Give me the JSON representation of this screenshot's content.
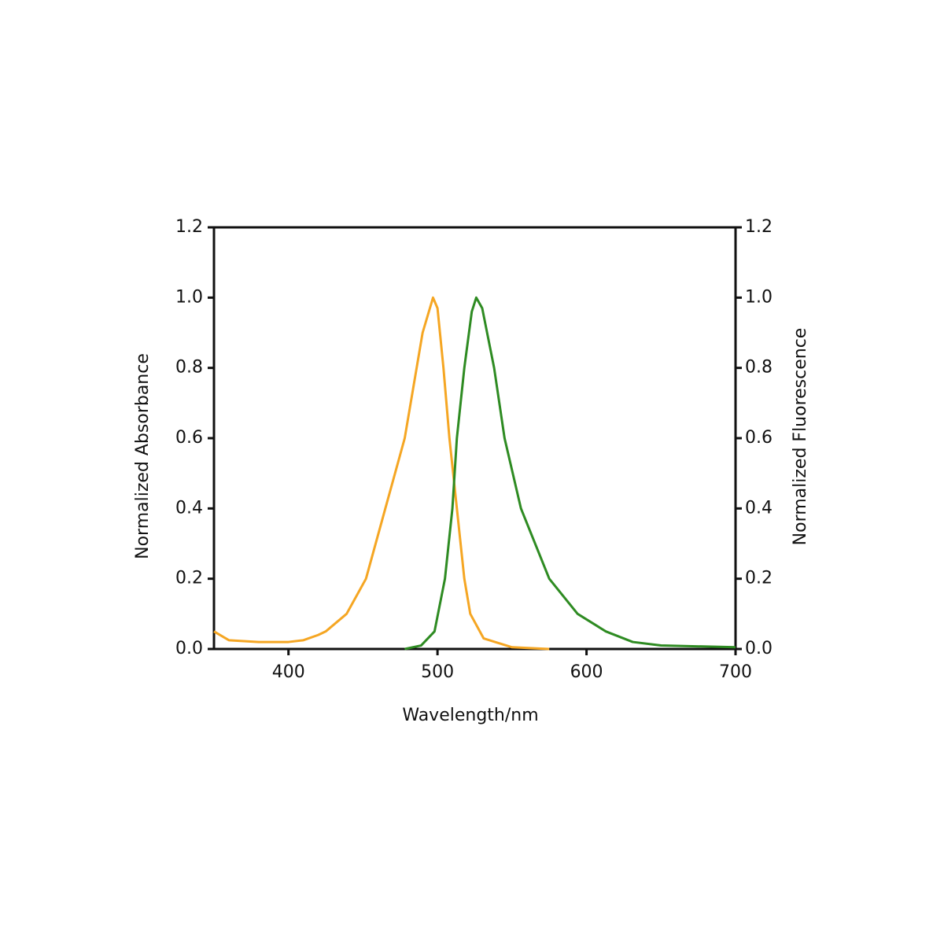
{
  "chart_data": {
    "type": "line",
    "xlabel": "Wavelength/nm",
    "ylabel": "Normalized Absorbance",
    "y2label": "Normalized Fluorescence",
    "xlim": [
      350,
      700
    ],
    "xticks": [
      400,
      500,
      600,
      700
    ],
    "ylim": [
      0,
      1.2
    ],
    "yticks": [
      {
        "value": 0,
        "label": "0.0"
      },
      0.2,
      0.4,
      0.6,
      0.8,
      {
        "value": 1,
        "label": "1.0"
      },
      1.2
    ],
    "y2lim": [
      0,
      1.2
    ],
    "y2ticks": [
      {
        "value": 0,
        "label": "0.0"
      },
      0.2,
      0.4,
      0.6,
      0.8,
      {
        "value": 1,
        "label": "1.0"
      },
      1.2
    ],
    "series": [
      {
        "name": "Absorbance",
        "color": "#f5a623",
        "x": [
          350,
          360,
          380,
          400,
          410,
          420,
          425,
          439,
          452,
          465,
          478,
          490,
          497,
          500,
          504,
          508,
          513,
          518,
          522,
          531,
          550,
          575
        ],
        "values": [
          0.05,
          0.025,
          0.02,
          0.02,
          0.025,
          0.04,
          0.05,
          0.1,
          0.2,
          0.4,
          0.6,
          0.9,
          1.0,
          0.97,
          0.8,
          0.6,
          0.4,
          0.2,
          0.1,
          0.03,
          0.005,
          0.0
        ]
      },
      {
        "name": "Fluorescence",
        "color": "#2e8b22",
        "axis": "y2",
        "x": [
          478,
          489,
          498,
          505,
          510,
          513,
          518,
          523,
          526,
          530,
          538,
          545,
          556,
          575,
          594,
          613,
          631,
          650,
          700
        ],
        "values": [
          0.0,
          0.01,
          0.05,
          0.2,
          0.4,
          0.6,
          0.8,
          0.96,
          1.0,
          0.97,
          0.8,
          0.6,
          0.4,
          0.2,
          0.1,
          0.05,
          0.02,
          0.01,
          0.005
        ]
      }
    ]
  }
}
